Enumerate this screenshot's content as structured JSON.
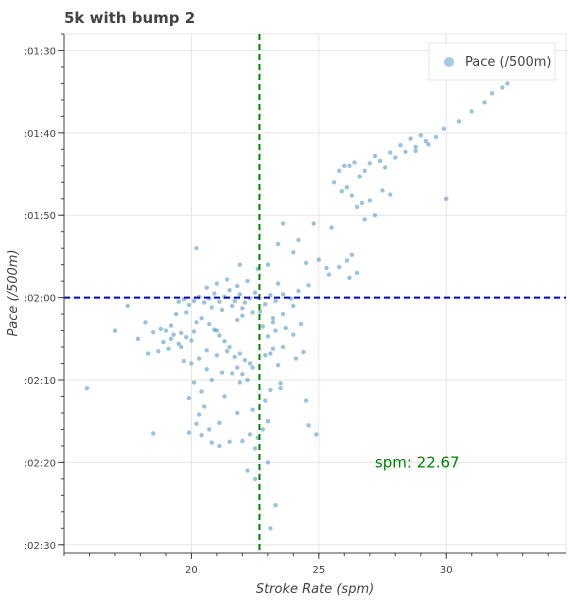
{
  "chart_data": {
    "type": "scatter",
    "title": "5k with bump 2",
    "xlabel": "Stroke Rate (spm)",
    "ylabel": "Pace (/500m)",
    "xlim": [
      15.0,
      34.7
    ],
    "ylim": [
      151.0,
      88.0
    ],
    "y_inverted": true,
    "x_ticks": [
      20,
      25,
      30
    ],
    "y_ticks": [
      {
        "value": 90,
        "label": ":01:30"
      },
      {
        "value": 100,
        "label": ":01:40"
      },
      {
        "value": 110,
        "label": ":01:50"
      },
      {
        "value": 120,
        "label": ":02:00"
      },
      {
        "value": 130,
        "label": ":02:10"
      },
      {
        "value": 140,
        "label": ":02:20"
      },
      {
        "value": 150,
        "label": ":02:30"
      }
    ],
    "grid": true,
    "legend_position": "top-right",
    "vline": {
      "x": 22.67,
      "color": "#008000",
      "style": "dashed"
    },
    "hline": {
      "y": 120,
      "color": "#0000cc",
      "style": "dashed"
    },
    "annotation": {
      "text": "spm:  22.67",
      "x": 27.2,
      "y": 140
    },
    "series": [
      {
        "name": "Pace (/500m)",
        "color": "#1f77b4",
        "points": [
          [
            32.4,
            94.0
          ],
          [
            32.2,
            94.5
          ],
          [
            31.8,
            95.2
          ],
          [
            31.5,
            96.3
          ],
          [
            31.0,
            97.4
          ],
          [
            30.5,
            98.6
          ],
          [
            29.9,
            99.5
          ],
          [
            29.6,
            100.5
          ],
          [
            29.3,
            101.4
          ],
          [
            29.0,
            100.3
          ],
          [
            28.8,
            101.7
          ],
          [
            28.6,
            100.7
          ],
          [
            28.4,
            102.3
          ],
          [
            28.2,
            101.5
          ],
          [
            28.0,
            103.0
          ],
          [
            27.8,
            102.4
          ],
          [
            27.6,
            104.2
          ],
          [
            27.4,
            103.4
          ],
          [
            27.2,
            102.8
          ],
          [
            27.0,
            103.7
          ],
          [
            26.8,
            104.6
          ],
          [
            26.6,
            105.3
          ],
          [
            26.4,
            103.6
          ],
          [
            26.2,
            104.0
          ],
          [
            26.0,
            104.0
          ],
          [
            25.8,
            104.6
          ],
          [
            25.6,
            106.0
          ],
          [
            28.8,
            102.2
          ],
          [
            29.2,
            101.0
          ],
          [
            30.0,
            108.0
          ],
          [
            27.5,
            107.0
          ],
          [
            27.8,
            107.5
          ],
          [
            27.0,
            108.2
          ],
          [
            26.7,
            108.5
          ],
          [
            26.5,
            109.0
          ],
          [
            26.3,
            107.6
          ],
          [
            26.1,
            106.6
          ],
          [
            25.9,
            107.1
          ],
          [
            27.2,
            110.0
          ],
          [
            26.8,
            110.5
          ],
          [
            25.5,
            111.5
          ],
          [
            24.8,
            111.0
          ],
          [
            24.0,
            114.5
          ],
          [
            24.5,
            115.8
          ],
          [
            25.0,
            115.4
          ],
          [
            25.3,
            116.4
          ],
          [
            26.3,
            114.8
          ],
          [
            26.1,
            115.5
          ],
          [
            25.8,
            116.3
          ],
          [
            26.5,
            117.0
          ],
          [
            26.2,
            117.6
          ],
          [
            25.4,
            117.2
          ],
          [
            24.2,
            113.0
          ],
          [
            23.6,
            111.0
          ],
          [
            23.4,
            113.5
          ],
          [
            23.0,
            116.0
          ],
          [
            22.6,
            116.5
          ],
          [
            21.9,
            116.0
          ],
          [
            20.2,
            114.0
          ],
          [
            24.6,
            118.5
          ],
          [
            24.2,
            119.2
          ],
          [
            23.9,
            120.1
          ],
          [
            23.6,
            119.6
          ],
          [
            23.3,
            120.4
          ],
          [
            23.1,
            119.7
          ],
          [
            22.9,
            120.8
          ],
          [
            22.5,
            119.4
          ],
          [
            22.3,
            120.1
          ],
          [
            22.1,
            120.6
          ],
          [
            21.9,
            119.6
          ],
          [
            21.7,
            120.4
          ],
          [
            21.5,
            119.1
          ],
          [
            21.3,
            119.9
          ],
          [
            21.1,
            120.5
          ],
          [
            20.9,
            119.5
          ],
          [
            20.7,
            120.1
          ],
          [
            20.5,
            120.6
          ],
          [
            20.3,
            119.9
          ],
          [
            20.1,
            120.4
          ],
          [
            19.9,
            120.9
          ],
          [
            19.7,
            120.2
          ],
          [
            19.5,
            120.5
          ],
          [
            21.0,
            118.3
          ],
          [
            21.4,
            117.8
          ],
          [
            21.8,
            118.6
          ],
          [
            20.6,
            118.8
          ],
          [
            22.2,
            118.0
          ],
          [
            23.4,
            118.3
          ],
          [
            20.8,
            121.2
          ],
          [
            21.2,
            121.5
          ],
          [
            21.6,
            121.0
          ],
          [
            22.0,
            121.3
          ],
          [
            22.4,
            121.8
          ],
          [
            23.2,
            122.5
          ],
          [
            23.6,
            122.0
          ],
          [
            24.0,
            121.0
          ],
          [
            19.8,
            121.8
          ],
          [
            19.4,
            122.0
          ],
          [
            19.2,
            123.4
          ],
          [
            18.8,
            123.8
          ],
          [
            18.5,
            124.2
          ],
          [
            18.2,
            123.0
          ],
          [
            19.0,
            124.0
          ],
          [
            19.3,
            124.5
          ],
          [
            19.6,
            124.3
          ],
          [
            19.8,
            124.8
          ],
          [
            20.1,
            124.1
          ],
          [
            20.0,
            125.2
          ],
          [
            19.5,
            125.6
          ],
          [
            19.1,
            126.2
          ],
          [
            18.7,
            126.5
          ],
          [
            18.3,
            126.8
          ],
          [
            17.9,
            125.0
          ],
          [
            17.0,
            124.0
          ],
          [
            17.5,
            121.0
          ],
          [
            20.4,
            122.5
          ],
          [
            20.7,
            123.2
          ],
          [
            20.9,
            123.9
          ],
          [
            21.1,
            124.6
          ],
          [
            21.3,
            125.3
          ],
          [
            21.5,
            126.0
          ],
          [
            21.0,
            127.0
          ],
          [
            20.6,
            126.4
          ],
          [
            20.3,
            127.4
          ],
          [
            20.0,
            128.0
          ],
          [
            19.7,
            127.7
          ],
          [
            21.7,
            127.2
          ],
          [
            21.9,
            126.8
          ],
          [
            22.1,
            127.6
          ],
          [
            21.8,
            128.5
          ],
          [
            22.0,
            129.3
          ],
          [
            21.9,
            130.3
          ],
          [
            22.2,
            130.0
          ],
          [
            21.6,
            129.2
          ],
          [
            22.3,
            128.0
          ],
          [
            21.4,
            126.5
          ],
          [
            20.8,
            130.0
          ],
          [
            20.4,
            131.4
          ],
          [
            20.1,
            130.3
          ],
          [
            20.5,
            133.2
          ],
          [
            20.3,
            134.2
          ],
          [
            20.2,
            135.3
          ],
          [
            20.4,
            136.7
          ],
          [
            20.8,
            137.6
          ],
          [
            21.1,
            138.0
          ],
          [
            21.5,
            137.5
          ],
          [
            22.0,
            137.4
          ],
          [
            22.3,
            136.6
          ],
          [
            22.5,
            138.3
          ],
          [
            22.6,
            137.0
          ],
          [
            22.8,
            136.0
          ],
          [
            23.0,
            135.0
          ],
          [
            22.9,
            132.5
          ],
          [
            23.1,
            131.2
          ],
          [
            23.5,
            130.4
          ],
          [
            23.4,
            128.2
          ],
          [
            22.9,
            127.0
          ],
          [
            23.2,
            126.2
          ],
          [
            23.0,
            124.7
          ],
          [
            22.8,
            123.5
          ],
          [
            23.3,
            124.0
          ],
          [
            23.7,
            123.7
          ],
          [
            23.2,
            123.0
          ],
          [
            22.7,
            121.7
          ],
          [
            24.3,
            123.2
          ],
          [
            24.1,
            127.4
          ],
          [
            24.5,
            132.5
          ],
          [
            24.6,
            135.5
          ],
          [
            24.9,
            136.6
          ],
          [
            23.5,
            131.0
          ],
          [
            23.0,
            140.0
          ],
          [
            22.2,
            141.0
          ],
          [
            22.5,
            142.0
          ],
          [
            23.3,
            145.2
          ],
          [
            23.1,
            148.0
          ],
          [
            15.9,
            131.0
          ],
          [
            18.5,
            136.5
          ],
          [
            19.9,
            132.2
          ],
          [
            21.3,
            132.0
          ],
          [
            22.4,
            133.6
          ],
          [
            20.7,
            136.0
          ],
          [
            19.9,
            136.4
          ],
          [
            21.1,
            135.2
          ],
          [
            21.8,
            134.0
          ],
          [
            22.4,
            128.5
          ],
          [
            21.2,
            129.1
          ],
          [
            20.6,
            128.7
          ],
          [
            21.0,
            124.0
          ],
          [
            22.0,
            122.2
          ],
          [
            23.1,
            126.8
          ],
          [
            23.6,
            126.0
          ],
          [
            24.4,
            126.6
          ],
          [
            24.0,
            124.5
          ],
          [
            19.2,
            125.0
          ],
          [
            18.9,
            125.4
          ],
          [
            19.6,
            126.0
          ],
          [
            20.2,
            123.0
          ],
          [
            21.8,
            122.7
          ]
        ]
      }
    ]
  }
}
